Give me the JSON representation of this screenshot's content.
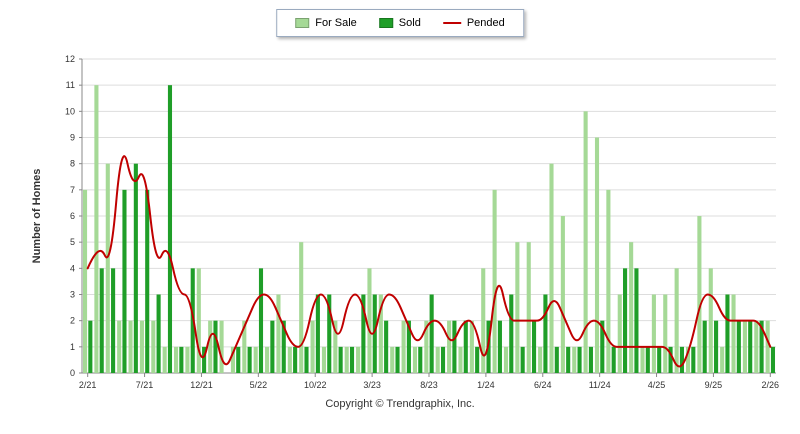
{
  "footer": {
    "copyright": "Copyright © Trendgraphix, Inc."
  },
  "chart_data": {
    "type": "bar",
    "title": "",
    "xlabel": "",
    "ylabel": "Number of Homes",
    "ylim": [
      0,
      12
    ],
    "grid": true,
    "legend_position": "top",
    "categories": [
      "2/21",
      "3/21",
      "4/21",
      "5/21",
      "6/21",
      "7/21",
      "8/21",
      "9/21",
      "10/21",
      "11/21",
      "12/21",
      "1/22",
      "2/22",
      "3/22",
      "4/22",
      "5/22",
      "6/22",
      "7/22",
      "8/22",
      "9/22",
      "10/22",
      "11/22",
      "12/22",
      "1/23",
      "2/23",
      "3/23",
      "4/23",
      "5/23",
      "6/23",
      "7/23",
      "8/23",
      "9/23",
      "10/23",
      "11/23",
      "12/23",
      "1/24",
      "2/24",
      "3/24",
      "4/24",
      "5/24",
      "6/24",
      "7/24",
      "8/24",
      "9/24",
      "10/24",
      "11/24",
      "12/24",
      "1/25",
      "2/25",
      "3/25",
      "4/25",
      "5/25",
      "6/25",
      "7/25",
      "8/25",
      "9/25",
      "10/25",
      "11/25",
      "12/25",
      "1/26",
      "2/26"
    ],
    "x_ticks": [
      {
        "index": 0,
        "label": "2/21"
      },
      {
        "index": 5,
        "label": "7/21"
      },
      {
        "index": 10,
        "label": "12/21"
      },
      {
        "index": 15,
        "label": "5/22"
      },
      {
        "index": 20,
        "label": "10/22"
      },
      {
        "index": 25,
        "label": "3/23"
      },
      {
        "index": 30,
        "label": "8/23"
      },
      {
        "index": 35,
        "label": "1/24"
      },
      {
        "index": 40,
        "label": "6/24"
      },
      {
        "index": 45,
        "label": "11/24"
      },
      {
        "index": 50,
        "label": "4/25"
      },
      {
        "index": 55,
        "label": "9/25"
      },
      {
        "index": 60,
        "label": "2/26"
      }
    ],
    "series": [
      {
        "name": "For Sale",
        "type": "bar",
        "color": "#a5d996",
        "values": [
          7,
          11,
          8,
          2,
          2,
          2,
          2,
          1,
          1,
          1,
          4,
          2,
          2,
          1,
          2,
          1,
          1,
          3,
          1,
          5,
          2,
          1,
          2,
          1,
          1,
          4,
          3,
          1,
          2,
          1,
          2,
          1,
          2,
          1,
          2,
          4,
          7,
          1,
          5,
          5,
          1,
          8,
          6,
          1,
          10,
          9,
          7,
          3,
          5,
          1,
          3,
          3,
          4,
          1,
          6,
          4,
          1,
          3,
          2,
          2,
          2
        ]
      },
      {
        "name": "Sold",
        "type": "bar",
        "color": "#1f9e28",
        "values": [
          2,
          4,
          4,
          7,
          8,
          7,
          3,
          11,
          1,
          4,
          1,
          2,
          0,
          1,
          1,
          4,
          2,
          2,
          1,
          1,
          3,
          3,
          1,
          1,
          3,
          3,
          2,
          1,
          2,
          1,
          3,
          1,
          2,
          2,
          1,
          2,
          2,
          3,
          1,
          2,
          3,
          1,
          1,
          1,
          1,
          2,
          1,
          4,
          4,
          1,
          1,
          1,
          1,
          1,
          2,
          2,
          3,
          2,
          2,
          2,
          1
        ]
      },
      {
        "name": "Pended",
        "type": "line",
        "color": "#c00000",
        "values": [
          4,
          5,
          4,
          9,
          7,
          8,
          4,
          5,
          3,
          3,
          0,
          2,
          0,
          1,
          2,
          3,
          3,
          2,
          1,
          1,
          3,
          3,
          1,
          3,
          3,
          1,
          3,
          3,
          2,
          1,
          2,
          2,
          1,
          2,
          2,
          0,
          4,
          2,
          2,
          2,
          2,
          3,
          2,
          1,
          2,
          2,
          1,
          1,
          1,
          1,
          1,
          1,
          0,
          1,
          3,
          3,
          2,
          2,
          2,
          2,
          1
        ]
      }
    ],
    "gridline_color": "#dddddd",
    "axis_color": "#888888"
  }
}
